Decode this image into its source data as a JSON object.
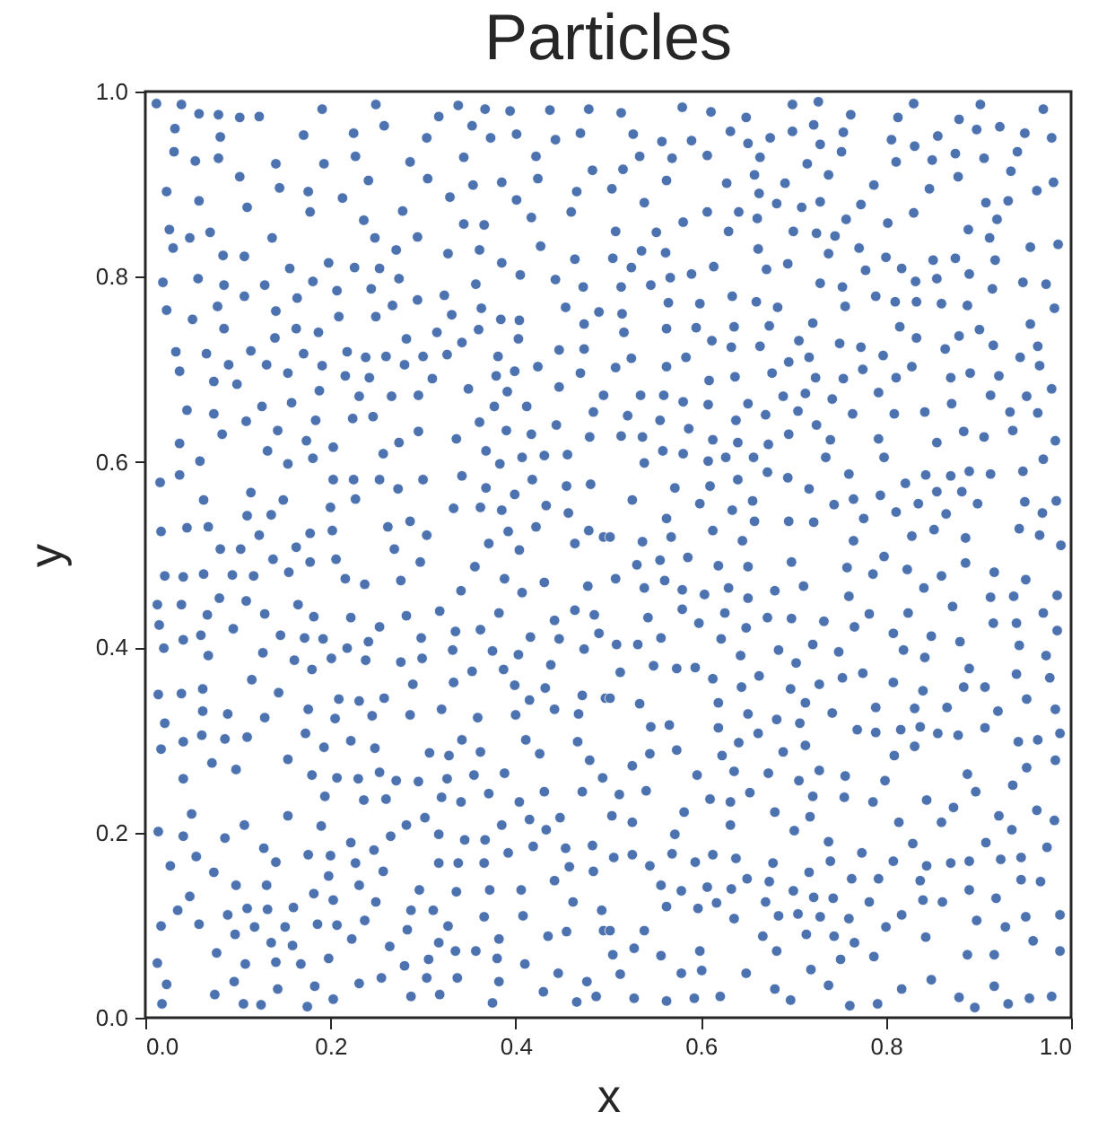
{
  "chart_data": {
    "type": "scatter",
    "title": "Particles",
    "xlabel": "x",
    "ylabel": "y",
    "xlim": [
      0,
      1
    ],
    "ylim": [
      0,
      1
    ],
    "xticks": [
      {
        "value": 0,
        "label": "0.0"
      },
      0.2,
      0.4,
      0.6,
      0.8,
      {
        "value": 1,
        "label": "1.0"
      }
    ],
    "yticks": [
      {
        "value": 0,
        "label": "0.0"
      },
      0.2,
      0.4,
      0.6,
      0.8,
      {
        "value": 1,
        "label": "1.0"
      }
    ],
    "grid": false,
    "marker": "circle",
    "series": [
      {
        "color": "#4c72b0",
        "x": [
          0.012,
          0.039,
          0.058,
          0.079,
          0.102,
          0.123,
          0.191,
          0.249,
          0.317,
          0.338,
          0.367,
          0.394,
          0.437,
          0.479,
          0.032,
          0.081,
          0.171,
          0.225,
          0.258,
          0.304,
          0.353,
          0.373,
          0.401,
          0.443,
          0.47,
          0.031,
          0.054,
          0.079,
          0.141,
          0.193,
          0.227,
          0.286,
          0.344,
          0.422,
          0.483,
          0.023,
          0.058,
          0.102,
          0.145,
          0.176,
          0.213,
          0.241,
          0.305,
          0.354,
          0.385,
          0.424,
          0.466,
          0.026,
          0.048,
          0.07,
          0.11,
          0.178,
          0.236,
          0.278,
          0.329,
          0.401,
          0.46,
          0.03,
          0.084,
          0.137,
          0.248,
          0.294,
          0.344,
          0.366,
          0.417,
          0.019,
          0.057,
          0.107,
          0.156,
          0.198,
          0.226,
          0.253,
          0.271,
          0.327,
          0.361,
          0.385,
          0.427,
          0.464,
          0.023,
          0.051,
          0.085,
          0.107,
          0.129,
          0.181,
          0.207,
          0.244,
          0.274,
          0.294,
          0.323,
          0.357,
          0.405,
          0.443,
          0.473,
          0.078,
          0.141,
          0.164,
          0.209,
          0.249,
          0.267,
          0.331,
          0.363,
          0.384,
          0.404,
          0.454,
          0.49,
          0.085,
          0.14,
          0.163,
          0.187,
          0.282,
          0.315,
          0.36,
          0.403,
          0.474,
          0.033,
          0.066,
          0.114,
          0.171,
          0.218,
          0.238,
          0.26,
          0.3,
          0.326,
          0.342,
          0.381,
          0.447,
          0.474,
          0.037,
          0.09,
          0.131,
          0.154,
          0.191,
          0.216,
          0.242,
          0.28,
          0.31,
          0.379,
          0.399,
          0.424,
          0.47,
          0.074,
          0.099,
          0.188,
          0.231,
          0.266,
          0.295,
          0.349,
          0.391,
          0.447,
          0.495,
          0.045,
          0.074,
          0.126,
          0.158,
          0.109,
          0.184,
          0.224,
          0.246,
          0.377,
          0.412,
          0.484,
          0.083,
          0.143,
          0.295,
          0.336,
          0.361,
          0.39,
          0.417,
          0.444,
          0.48,
          0.037,
          0.174,
          0.203,
          0.132,
          0.274,
          0.257,
          0.368,
          0.059,
          0.154,
          0.181,
          0.383,
          0.407,
          0.431,
          0.456,
          0.016,
          0.037,
          0.203,
          0.225,
          0.253,
          0.3,
          0.342,
          0.418,
          0.455,
          0.481,
          0.114,
          0.273,
          0.368,
          0.399,
          0.063,
          0.149,
          0.227,
          0.2,
          0.333,
          0.362,
          0.385,
          0.433,
          0.457,
          0.11,
          0.136,
          0.286,
          0.017,
          0.045,
          0.068,
          0.123,
          0.178,
          0.202,
          0.262,
          0.304,
          0.392,
          0.422,
          0.479,
          0.081,
          0.103,
          0.163,
          0.269,
          0.371,
          0.404,
          0.464,
          0.495,
          0.514,
          0.58,
          0.611,
          0.649,
          0.699,
          0.727,
          0.762,
          0.813,
          0.83,
          0.879,
          0.902,
          0.923,
          0.97,
          0.527,
          0.558,
          0.59,
          0.632,
          0.651,
          0.675,
          0.699,
          0.722,
          0.754,
          0.806,
          0.831,
          0.856,
          0.898,
          0.95,
          0.979,
          0.516,
          0.534,
          0.569,
          0.607,
          0.664,
          0.729,
          0.752,
          0.715,
          0.811,
          0.85,
          0.875,
          0.906,
          0.942,
          0.504,
          0.563,
          0.628,
          0.658,
          0.691,
          0.738,
          0.787,
          0.847,
          0.878,
          0.935,
          0.981,
          0.539,
          0.607,
          0.641,
          0.663,
          0.682,
          0.709,
          0.729,
          0.773,
          0.83,
          0.908,
          0.932,
          0.963,
          0.508,
          0.552,
          0.581,
          0.63,
          0.661,
          0.7,
          0.725,
          0.745,
          0.757,
          0.802,
          0.889,
          0.912,
          0.92,
          0.505,
          0.525,
          0.536,
          0.562,
          0.614,
          0.662,
          0.671,
          0.694,
          0.738,
          0.771,
          0.778,
          0.8,
          0.817,
          0.851,
          0.875,
          0.918,
          0.956,
          0.986,
          0.514,
          0.546,
          0.567,
          0.59,
          0.729,
          0.753,
          0.832,
          0.855,
          0.89,
          0.915,
          0.948,
          0.973,
          0.565,
          0.599,
          0.634,
          0.66,
          0.683,
          0.756,
          0.789,
          0.81,
          0.833,
          0.86,
          0.888,
          0.982,
          0.515,
          0.517,
          0.563,
          0.595,
          0.636,
          0.674,
          0.721,
          0.815,
          0.833,
          0.879,
          0.901,
          0.956,
          0.508,
          0.525,
          0.584,
          0.612,
          0.633,
          0.664,
          0.695,
          0.706,
          0.717,
          0.75,
          0.773,
          0.797,
          0.864,
          0.916,
          0.945,
          0.964,
          0.563,
          0.609,
          0.637,
          0.677,
          0.724,
          0.754,
          0.775,
          0.811,
          0.828,
          0.87,
          0.891,
          0.922,
          0.966,
          0.535,
          0.56,
          0.581,
          0.608,
          0.651,
          0.689,
          0.713,
          0.742,
          0.792,
          0.871,
          0.913,
          0.952,
          0.979,
          0.521,
          0.556,
          0.587,
          0.638,
          0.67,
          0.705,
          0.764,
          0.809,
          0.842,
          0.934,
          0.964,
          0.514,
          0.537,
          0.613,
          0.64,
          0.695,
          0.725,
          0.74,
          0.792,
          0.855,
          0.884,
          0.906,
          0.937,
          0.983,
          0.539,
          0.559,
          0.581,
          0.608,
          0.627,
          0.657,
          0.673,
          0.735,
          0.798,
          0.97,
          0.572,
          0.61,
          0.64,
          0.672,
          0.694,
          0.717,
          0.76,
          0.821,
          0.843,
          0.87,
          0.89,
          0.913,
          0.948,
          0.526,
          0.599,
          0.634,
          0.656,
          0.744,
          0.765,
          0.794,
          0.811,
          0.835,
          0.855,
          0.882,
          0.899,
          0.95,
          0.984,
          0.563,
          0.658,
          0.695,
          0.722,
          0.776,
          0.865,
          0.969,
          0.502,
          0.537,
          0.568,
          0.613,
          0.645,
          0.765,
          0.828,
          0.852,
          0.886,
          0.944,
          0.966,
          0.989,
          0.021,
          0.041,
          0.063,
          0.094,
          0.117,
          0.155,
          0.138,
          0.178,
          0.206,
          0.216,
          0.237,
          0.276,
          0.297,
          0.341,
          0.356,
          0.388,
          0.407,
          0.431,
          0.478,
          0.013,
          0.039,
          0.08,
          0.109,
          0.067,
          0.129,
          0.165,
          0.182,
          0.222,
          0.253,
          0.282,
          0.318,
          0.382,
          0.442,
          0.464,
          0.485,
          0.015,
          0.041,
          0.06,
          0.095,
          0.146,
          0.172,
          0.192,
          0.218,
          0.241,
          0.298,
          0.335,
          0.362,
          0.416,
          0.447,
          0.49,
          0.02,
          0.068,
          0.127,
          0.161,
          0.18,
          0.201,
          0.238,
          0.276,
          0.299,
          0.332,
          0.353,
          0.375,
          0.387,
          0.403,
          0.438,
          0.474,
          0.115,
          0.144,
          0.014,
          0.039,
          0.062,
          0.209,
          0.231,
          0.258,
          0.289,
          0.333,
          0.399,
          0.415,
          0.432,
          0.472,
          0.497,
          0.062,
          0.089,
          0.129,
          0.176,
          0.205,
          0.245,
          0.286,
          0.32,
          0.359,
          0.4,
          0.442,
          0.468,
          0.021,
          0.017,
          0.041,
          0.061,
          0.086,
          0.11,
          0.173,
          0.193,
          0.222,
          0.248,
          0.307,
          0.328,
          0.342,
          0.362,
          0.411,
          0.426,
          0.467,
          0.48,
          0.041,
          0.072,
          0.098,
          0.154,
          0.18,
          0.207,
          0.23,
          0.253,
          0.271,
          0.295,
          0.326,
          0.355,
          0.388,
          0.494,
          0.194,
          0.236,
          0.26,
          0.32,
          0.341,
          0.371,
          0.404,
          0.431,
          0.472,
          0.014,
          0.041,
          0.05,
          0.086,
          0.107,
          0.154,
          0.19,
          0.222,
          0.265,
          0.282,
          0.302,
          0.317,
          0.345,
          0.367,
          0.385,
          0.415,
          0.433,
          0.448,
          0.483,
          0.027,
          0.055,
          0.074,
          0.128,
          0.141,
          0.176,
          0.2,
          0.227,
          0.247,
          0.257,
          0.317,
          0.338,
          0.366,
          0.392,
          0.419,
          0.454,
          0.458,
          0.484,
          0.098,
          0.131,
          0.198,
          0.231,
          0.296,
          0.336,
          0.372,
          0.406,
          0.442,
          0.048,
          0.035,
          0.017,
          0.058,
          0.089,
          0.11,
          0.132,
          0.16,
          0.182,
          0.203,
          0.249,
          0.287,
          0.311,
          0.366,
          0.408,
          0.462,
          0.493,
          0.097,
          0.118,
          0.151,
          0.186,
          0.207,
          0.237,
          0.283,
          0.327,
          0.136,
          0.159,
          0.223,
          0.264,
          0.317,
          0.335,
          0.357,
          0.382,
          0.435,
          0.455,
          0.495,
          0.077,
          0.013,
          0.108,
          0.141,
          0.168,
          0.198,
          0.28,
          0.306,
          0.38,
          0.41,
          0.446,
          0.023,
          0.096,
          0.143,
          0.183,
          0.231,
          0.255,
          0.304,
          0.337,
          0.382,
          0.43,
          0.477,
          0.018,
          0.075,
          0.106,
          0.125,
          0.175,
          0.203,
          0.287,
          0.318,
          0.375,
          0.466,
          0.487,
          0.531,
          0.556,
          0.586,
          0.619,
          0.651,
          0.698,
          0.758,
          0.786,
          0.798,
          0.823,
          0.86,
          0.886,
          0.917,
          0.951,
          0.508,
          0.539,
          0.561,
          0.58,
          0.604,
          0.63,
          0.651,
          0.68,
          0.711,
          0.76,
          0.841,
          0.872,
          0.913,
          0.938,
          0.985,
          0.543,
          0.58,
          0.598,
          0.626,
          0.649,
          0.672,
          0.698,
          0.733,
          0.766,
          0.782,
          0.824,
          0.808,
          0.849,
          0.916,
          0.941,
          0.97,
          0.985,
          0.509,
          0.532,
          0.557,
          0.622,
          0.684,
          0.721,
          0.749,
          0.819,
          0.842,
          0.88,
          0.944,
          0.973,
          0.513,
          0.549,
          0.574,
          0.594,
          0.613,
          0.643,
          0.663,
          0.703,
          0.728,
          0.753,
          0.775,
          0.808,
          0.84,
          0.89,
          0.884,
          0.907,
          0.941,
          0.977,
          0.502,
          0.534,
          0.619,
          0.644,
          0.697,
          0.713,
          0.742,
          0.789,
          0.831,
          0.866,
          0.921,
          0.952,
          0.983,
          0.546,
          0.566,
          0.619,
          0.651,
          0.682,
          0.707,
          0.662,
          0.769,
          0.789,
          0.816,
          0.837,
          0.856,
          0.878,
          0.907,
          0.943,
          0.964,
          0.988,
          0.545,
          0.574,
          0.623,
          0.641,
          0.689,
          0.713,
          0.809,
          0.831,
          0.983,
          0.526,
          0.596,
          0.636,
          0.673,
          0.706,
          0.728,
          0.756,
          0.799,
          0.888,
          0.952,
          0.512,
          0.541,
          0.61,
          0.632,
          0.653,
          0.721,
          0.755,
          0.786,
          0.844,
          0.873,
          0.897,
          0.937,
          0.504,
          0.526,
          0.582,
          0.572,
          0.632,
          0.68,
          0.701,
          0.718,
          0.814,
          0.86,
          0.922,
          0.936,
          0.963,
          0.982,
          0.506,
          0.526,
          0.545,
          0.569,
          0.594,
          0.613,
          0.638,
          0.678,
          0.738,
          0.74,
          0.774,
          0.808,
          0.829,
          0.844,
          0.87,
          0.89,
          0.908,
          0.924,
          0.946,
          0.974,
          0.557,
          0.579,
          0.607,
          0.633,
          0.65,
          0.674,
          0.7,
          0.717,
          0.763,
          0.792,
          0.837,
          0.89,
          0.946,
          0.967,
          0.563,
          0.597,
          0.617,
          0.636,
          0.67,
          0.684,
          0.705,
          0.722,
          0.729,
          0.743,
          0.76,
          0.782,
          0.817,
          0.84,
          0.861,
          0.898,
          0.919,
          0.951,
          0.988,
          0.502,
          0.539,
          0.667,
          0.714,
          0.744,
          0.766,
          0.8,
          0.843,
          0.929,
          0.959,
          0.505,
          0.528,
          0.557,
          0.599,
          0.682,
          0.751,
          0.787,
          0.888,
          0.917,
          0.988,
          0.513,
          0.579,
          0.601,
          0.649,
          0.719,
          0.738,
          0.817,
          0.849,
          0.917,
          0.528,
          0.563,
          0.593,
          0.621,
          0.68,
          0.697,
          0.761,
          0.791,
          0.879,
          0.896,
          0.932,
          0.955,
          0.979
        ],
        "values": [
          0.987,
          0.986,
          0.976,
          0.975,
          0.972,
          0.973,
          0.981,
          0.986,
          0.973,
          0.985,
          0.981,
          0.979,
          0.98,
          0.981,
          0.96,
          0.951,
          0.953,
          0.955,
          0.963,
          0.95,
          0.963,
          0.95,
          0.954,
          0.948,
          0.955,
          0.935,
          0.925,
          0.928,
          0.922,
          0.922,
          0.93,
          0.924,
          0.929,
          0.93,
          0.915,
          0.892,
          0.882,
          0.908,
          0.896,
          0.892,
          0.885,
          0.904,
          0.906,
          0.899,
          0.902,
          0.906,
          0.892,
          0.851,
          0.842,
          0.848,
          0.875,
          0.87,
          0.861,
          0.871,
          0.886,
          0.883,
          0.87,
          0.831,
          0.823,
          0.842,
          0.842,
          0.843,
          0.857,
          0.856,
          0.864,
          0.794,
          0.798,
          0.822,
          0.809,
          0.815,
          0.81,
          0.809,
          0.829,
          0.825,
          0.829,
          0.815,
          0.833,
          0.819,
          0.764,
          0.754,
          0.791,
          0.779,
          0.791,
          0.795,
          0.785,
          0.787,
          0.798,
          0.775,
          0.78,
          0.792,
          0.802,
          0.797,
          0.789,
          0.768,
          0.763,
          0.777,
          0.757,
          0.757,
          0.769,
          0.759,
          0.766,
          0.754,
          0.753,
          0.767,
          0.762,
          0.744,
          0.734,
          0.744,
          0.74,
          0.733,
          0.74,
          0.743,
          0.733,
          0.749,
          0.719,
          0.717,
          0.72,
          0.717,
          0.719,
          0.713,
          0.714,
          0.714,
          0.716,
          0.729,
          0.714,
          0.721,
          0.722,
          0.698,
          0.705,
          0.705,
          0.696,
          0.704,
          0.693,
          0.691,
          0.705,
          0.69,
          0.693,
          0.698,
          0.703,
          0.696,
          0.687,
          0.684,
          0.677,
          0.671,
          0.671,
          0.672,
          0.679,
          0.676,
          0.681,
          0.672,
          0.656,
          0.652,
          0.66,
          0.664,
          0.644,
          0.645,
          0.647,
          0.649,
          0.66,
          0.66,
          0.654,
          0.63,
          0.634,
          0.633,
          0.625,
          0.643,
          0.634,
          0.63,
          0.64,
          0.627,
          0.62,
          0.623,
          0.616,
          0.612,
          0.621,
          0.609,
          0.612,
          0.601,
          0.598,
          0.604,
          0.598,
          0.605,
          0.607,
          0.608,
          0.578,
          0.586,
          0.581,
          0.581,
          0.581,
          0.581,
          0.585,
          0.581,
          0.574,
          0.576,
          0.567,
          0.571,
          0.572,
          0.565,
          0.559,
          0.559,
          0.56,
          0.551,
          0.55,
          0.551,
          0.548,
          0.553,
          0.545,
          0.542,
          0.543,
          0.536,
          0.525,
          0.529,
          0.53,
          0.521,
          0.523,
          0.526,
          0.53,
          0.521,
          0.525,
          0.53,
          0.526,
          0.506,
          0.506,
          0.508,
          0.506,
          0.512,
          0.505,
          0.512,
          0.519,
          0.977,
          0.983,
          0.978,
          0.972,
          0.986,
          0.989,
          0.975,
          0.972,
          0.987,
          0.97,
          0.986,
          0.962,
          0.981,
          0.954,
          0.946,
          0.947,
          0.957,
          0.944,
          0.95,
          0.957,
          0.964,
          0.956,
          0.948,
          0.941,
          0.952,
          0.959,
          0.955,
          0.95,
          0.916,
          0.93,
          0.928,
          0.931,
          0.929,
          0.943,
          0.935,
          0.922,
          0.924,
          0.926,
          0.933,
          0.928,
          0.935,
          0.895,
          0.904,
          0.901,
          0.91,
          0.901,
          0.91,
          0.899,
          0.895,
          0.908,
          0.914,
          0.902,
          0.88,
          0.87,
          0.87,
          0.89,
          0.879,
          0.875,
          0.881,
          0.878,
          0.869,
          0.88,
          0.882,
          0.893,
          0.849,
          0.848,
          0.859,
          0.849,
          0.863,
          0.849,
          0.847,
          0.844,
          0.862,
          0.858,
          0.851,
          0.842,
          0.862,
          0.82,
          0.81,
          0.828,
          0.826,
          0.811,
          0.83,
          0.808,
          0.814,
          0.825,
          0.831,
          0.807,
          0.821,
          0.809,
          0.818,
          0.82,
          0.818,
          0.832,
          0.835,
          0.789,
          0.791,
          0.799,
          0.803,
          0.793,
          0.789,
          0.795,
          0.798,
          0.803,
          0.787,
          0.794,
          0.792,
          0.772,
          0.771,
          0.779,
          0.773,
          0.767,
          0.768,
          0.779,
          0.773,
          0.773,
          0.771,
          0.769,
          0.766,
          0.76,
          0.74,
          0.744,
          0.745,
          0.746,
          0.747,
          0.75,
          0.746,
          0.734,
          0.736,
          0.743,
          0.749,
          0.702,
          0.712,
          0.713,
          0.731,
          0.724,
          0.725,
          0.708,
          0.731,
          0.713,
          0.728,
          0.724,
          0.715,
          0.722,
          0.726,
          0.713,
          0.725,
          0.703,
          0.688,
          0.692,
          0.696,
          0.691,
          0.69,
          0.7,
          0.691,
          0.703,
          0.691,
          0.696,
          0.693,
          0.704,
          0.672,
          0.672,
          0.665,
          0.662,
          0.663,
          0.671,
          0.674,
          0.668,
          0.675,
          0.663,
          0.672,
          0.671,
          0.679,
          0.65,
          0.645,
          0.636,
          0.645,
          0.651,
          0.655,
          0.652,
          0.652,
          0.654,
          0.654,
          0.653,
          0.628,
          0.627,
          0.624,
          0.621,
          0.63,
          0.64,
          0.624,
          0.625,
          0.621,
          0.633,
          0.627,
          0.634,
          0.623,
          0.599,
          0.612,
          0.609,
          0.601,
          0.605,
          0.605,
          0.619,
          0.605,
          0.605,
          0.603,
          0.572,
          0.574,
          0.581,
          0.589,
          0.583,
          0.571,
          0.587,
          0.577,
          0.586,
          0.585,
          0.59,
          0.587,
          0.59,
          0.559,
          0.555,
          0.548,
          0.558,
          0.554,
          0.56,
          0.564,
          0.546,
          0.555,
          0.568,
          0.568,
          0.555,
          0.557,
          0.558,
          0.539,
          0.536,
          0.536,
          0.535,
          0.539,
          0.544,
          0.545,
          0.519,
          0.514,
          0.519,
          0.526,
          0.515,
          0.515,
          0.52,
          0.527,
          0.518,
          0.528,
          0.521,
          0.51,
          0.477,
          0.476,
          0.479,
          0.478,
          0.477,
          0.481,
          0.495,
          0.492,
          0.495,
          0.474,
          0.468,
          0.472,
          0.492,
          0.461,
          0.487,
          0.474,
          0.459,
          0.47,
          0.466,
          0.446,
          0.446,
          0.453,
          0.45,
          0.435,
          0.436,
          0.446,
          0.433,
          0.432,
          0.422,
          0.434,
          0.439,
          0.437,
          0.429,
          0.44,
          0.435,
          0.424,
          0.408,
          0.413,
          0.42,
          0.413,
          0.41,
          0.409,
          0.399,
          0.406,
          0.41,
          0.417,
          0.419,
          0.411,
          0.409,
          0.415,
          0.399,
          0.391,
          0.394,
          0.386,
          0.376,
          0.388,
          0.386,
          0.384,
          0.388,
          0.397,
          0.374,
          0.396,
          0.376,
          0.392,
          0.381,
          0.398,
          0.365,
          0.351,
          0.349,
          0.35,
          0.355,
          0.344,
          0.342,
          0.345,
          0.36,
          0.362,
          0.359,
          0.343,
          0.356,
          0.348,
          0.345,
          0.331,
          0.328,
          0.324,
          0.333,
          0.323,
          0.326,
          0.327,
          0.333,
          0.324,
          0.327,
          0.333,
          0.328,
          0.318,
          0.29,
          0.298,
          0.305,
          0.301,
          0.303,
          0.307,
          0.292,
          0.299,
          0.291,
          0.286,
          0.283,
          0.3,
          0.287,
          0.3,
          0.285,
          0.298,
          0.278,
          0.258,
          0.275,
          0.268,
          0.279,
          0.262,
          0.259,
          0.258,
          0.265,
          0.256,
          0.255,
          0.258,
          0.262,
          0.264,
          0.259,
          0.239,
          0.235,
          0.236,
          0.238,
          0.233,
          0.242,
          0.233,
          0.244,
          0.244,
          0.201,
          0.196,
          0.22,
          0.194,
          0.208,
          0.218,
          0.207,
          0.189,
          0.196,
          0.208,
          0.216,
          0.198,
          0.192,
          0.192,
          0.208,
          0.214,
          0.203,
          0.216,
          0.186,
          0.164,
          0.174,
          0.157,
          0.183,
          0.168,
          0.176,
          0.175,
          0.167,
          0.181,
          0.158,
          0.167,
          0.167,
          0.167,
          0.178,
          0.185,
          0.183,
          0.163,
          0.158,
          0.143,
          0.143,
          0.153,
          0.143,
          0.138,
          0.136,
          0.138,
          0.138,
          0.148,
          0.131,
          0.116,
          0.099,
          0.101,
          0.111,
          0.118,
          0.117,
          0.119,
          0.134,
          0.127,
          0.125,
          0.116,
          0.116,
          0.109,
          0.11,
          0.125,
          0.116,
          0.09,
          0.098,
          0.098,
          0.101,
          0.1,
          0.105,
          0.095,
          0.099,
          0.081,
          0.078,
          0.085,
          0.077,
          0.081,
          0.072,
          0.072,
          0.085,
          0.088,
          0.093,
          0.094,
          0.07,
          0.059,
          0.058,
          0.06,
          0.058,
          0.064,
          0.056,
          0.063,
          0.064,
          0.058,
          0.048,
          0.036,
          0.039,
          0.031,
          0.034,
          0.037,
          0.043,
          0.043,
          0.043,
          0.039,
          0.028,
          0.039,
          0.015,
          0.025,
          0.015,
          0.014,
          0.012,
          0.02,
          0.023,
          0.025,
          0.016,
          0.017,
          0.023,
          0.489,
          0.494,
          0.497,
          0.488,
          0.487,
          0.492,
          0.486,
          0.479,
          0.498,
          0.484,
          0.477,
          0.491,
          0.481,
          0.473,
          0.474,
          0.464,
          0.472,
          0.462,
          0.457,
          0.464,
          0.453,
          0.461,
          0.466,
          0.455,
          0.464,
          0.444,
          0.454,
          0.455,
          0.456,
          0.432,
          0.441,
          0.426,
          0.437,
          0.421,
          0.432,
          0.431,
          0.428,
          0.422,
          0.436,
          0.437,
          0.415,
          0.412,
          0.426,
          0.426,
          0.437,
          0.418,
          0.403,
          0.403,
          0.41,
          0.409,
          0.397,
          0.403,
          0.395,
          0.397,
          0.389,
          0.406,
          0.402,
          0.391,
          0.373,
          0.38,
          0.377,
          0.378,
          0.366,
          0.391,
          0.369,
          0.383,
          0.36,
          0.367,
          0.372,
          0.362,
          0.353,
          0.377,
          0.357,
          0.357,
          0.371,
          0.367,
          0.345,
          0.339,
          0.34,
          0.357,
          0.355,
          0.34,
          0.329,
          0.335,
          0.334,
          0.335,
          0.331,
          0.344,
          0.333,
          0.314,
          0.316,
          0.313,
          0.328,
          0.322,
          0.318,
          0.307,
          0.311,
          0.308,
          0.311,
          0.314,
          0.307,
          0.305,
          0.313,
          0.298,
          0.3,
          0.307,
          0.285,
          0.289,
          0.283,
          0.297,
          0.287,
          0.294,
          0.283,
          0.293,
          0.278,
          0.272,
          0.262,
          0.266,
          0.264,
          0.256,
          0.267,
          0.261,
          0.256,
          0.263,
          0.27,
          0.241,
          0.245,
          0.236,
          0.233,
          0.243,
          0.239,
          0.238,
          0.233,
          0.235,
          0.227,
          0.244,
          0.251,
          0.218,
          0.211,
          0.222,
          0.198,
          0.208,
          0.222,
          0.202,
          0.217,
          0.211,
          0.211,
          0.218,
          0.203,
          0.224,
          0.213,
          0.173,
          0.176,
          0.164,
          0.177,
          0.168,
          0.176,
          0.172,
          0.167,
          0.19,
          0.169,
          0.178,
          0.169,
          0.188,
          0.164,
          0.167,
          0.169,
          0.189,
          0.171,
          0.173,
          0.184,
          0.143,
          0.137,
          0.141,
          0.139,
          0.15,
          0.147,
          0.137,
          0.157,
          0.15,
          0.15,
          0.148,
          0.138,
          0.149,
          0.147,
          0.12,
          0.118,
          0.124,
          0.107,
          0.125,
          0.11,
          0.112,
          0.13,
          0.109,
          0.129,
          0.107,
          0.125,
          0.111,
          0.127,
          0.125,
          0.105,
          0.129,
          0.109,
          0.111,
          0.094,
          0.094,
          0.088,
          0.09,
          0.088,
          0.081,
          0.098,
          0.087,
          0.098,
          0.083,
          0.068,
          0.075,
          0.067,
          0.072,
          0.072,
          0.063,
          0.066,
          0.068,
          0.068,
          0.072,
          0.047,
          0.048,
          0.051,
          0.048,
          0.052,
          0.035,
          0.031,
          0.041,
          0.034,
          0.021,
          0.018,
          0.021,
          0.023,
          0.031,
          0.019,
          0.013,
          0.015,
          0.022,
          0.011,
          0.015,
          0.021,
          0.023
        ]
      }
    ]
  }
}
